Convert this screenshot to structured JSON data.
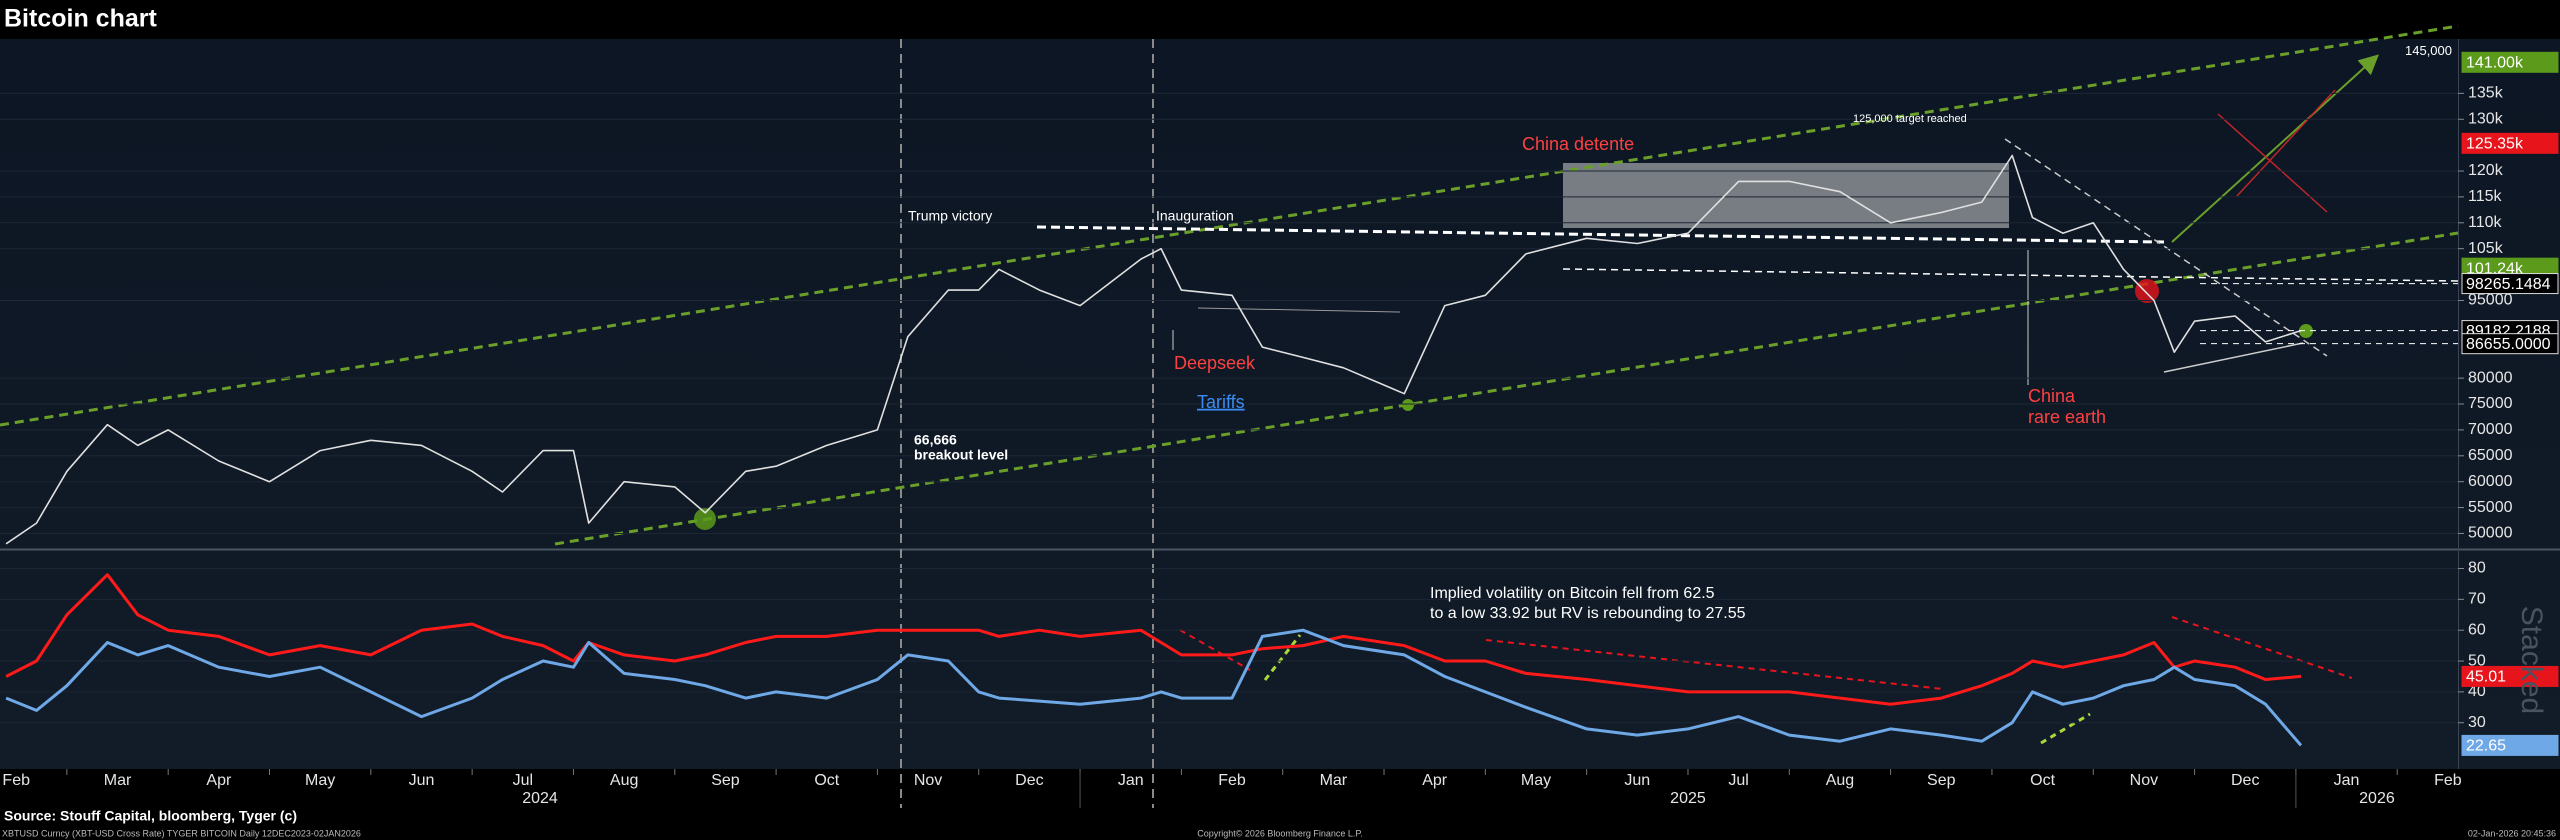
{
  "title": "Bitcoin chart",
  "source": "Source: Stouff Capital, bloomberg, Tyger (c)",
  "footer": {
    "left": "XBTUSD Curncy (XBT-USD Cross Rate) TYGER BITCOIN Daily 12DEC2023-02JAN2026",
    "center": "Copyright© 2026 Bloomberg Finance L.P.",
    "right": "02-Jan-2026 20:45:36"
  },
  "chart_data": [
    {
      "type": "line",
      "color": "#e0e0e0",
      "x": [
        1.4,
        1.7,
        2.0,
        2.4,
        2.7,
        3.0,
        3.5,
        4.0,
        4.5,
        5.0,
        5.5,
        6.0,
        6.3,
        6.7,
        7.0,
        7.15,
        7.5,
        8.0,
        8.3,
        8.7,
        9.0,
        9.5,
        10.0,
        10.3,
        10.7,
        11.0,
        11.2,
        11.6,
        12.0,
        12.6,
        12.8,
        13.0,
        13.5,
        13.8,
        14.2,
        14.6,
        15.2,
        15.6,
        16.0,
        16.4,
        17.0,
        17.5,
        18.0,
        18.5,
        19.0,
        19.5,
        20.0,
        20.5,
        20.9,
        21.2,
        21.4,
        21.7,
        22.0,
        22.3,
        22.6,
        22.8,
        23.0,
        23.4,
        23.7,
        24.05
      ],
      "values": [
        48000,
        52000,
        62000,
        71000,
        67000,
        70000,
        64000,
        60000,
        66000,
        68000,
        67000,
        62000,
        58000,
        66000,
        66000,
        52000,
        60000,
        59000,
        54000,
        62000,
        63000,
        67000,
        70000,
        88000,
        97000,
        97000,
        101000,
        97000,
        94000,
        103000,
        105000,
        97000,
        96000,
        86000,
        84000,
        82000,
        77000,
        94000,
        96000,
        104000,
        107000,
        106000,
        108000,
        118000,
        118000,
        116000,
        110000,
        112000,
        114000,
        123000,
        111000,
        108000,
        110000,
        101000,
        95000,
        85000,
        91000,
        92000,
        87000,
        89182.2188
      ],
      "xlim": [
        1.34,
        25.6
      ],
      "ylim": [
        47000,
        145500
      ],
      "yticks": [
        50000,
        55000,
        60000,
        65000,
        70000,
        75000,
        80000,
        95000,
        {
          "value": 105000,
          "label": "105k"
        },
        {
          "value": 110000,
          "label": "110k"
        },
        {
          "value": 115000,
          "label": "115k"
        },
        {
          "value": 120000,
          "label": "120k"
        },
        {
          "value": 130000,
          "label": "130k"
        },
        {
          "value": 135000,
          "label": "135k"
        }
      ],
      "ylim_label": {
        "value": 145000,
        "label": "145,000"
      },
      "level_labels": [
        {
          "value": 141000,
          "label": "141.00k",
          "color": "#5b9a1a"
        },
        {
          "value": 125350,
          "label": "125.35k",
          "color": "#e8141c"
        },
        {
          "value": 101240,
          "label": "101.24k",
          "color": "#5b9a1a"
        },
        {
          "value": 98265.1484,
          "label": "98265.1484",
          "color": "#000000"
        },
        {
          "value": 89182.2188,
          "label": "89182.2188",
          "color": "#000000"
        },
        {
          "value": 86655,
          "label": "86655.0000",
          "color": "#000000"
        }
      ],
      "annotations": [
        "Trump victory",
        "Inauguration",
        "China detente",
        "125,000 target reached",
        "Deepseek",
        "Tariffs",
        "66,666",
        "breakout level",
        "China",
        "rare earth"
      ]
    },
    {
      "type": "line",
      "x": [
        1.4,
        1.7,
        2.0,
        2.4,
        2.7,
        3.0,
        3.5,
        4.0,
        4.5,
        5.0,
        5.5,
        6.0,
        6.3,
        6.7,
        7.0,
        7.15,
        7.5,
        8.0,
        8.3,
        8.7,
        9.0,
        9.5,
        10.0,
        10.3,
        10.7,
        11.0,
        11.2,
        11.6,
        12.0,
        12.6,
        12.8,
        13.0,
        13.5,
        13.8,
        14.2,
        14.6,
        15.2,
        15.6,
        16.0,
        16.4,
        17.0,
        17.5,
        18.0,
        18.5,
        19.0,
        19.5,
        20.0,
        20.5,
        20.9,
        21.2,
        21.4,
        21.7,
        22.0,
        22.3,
        22.6,
        22.8,
        23.0,
        23.4,
        23.7,
        24.05
      ],
      "series": [
        {
          "color": "#ff1a1a",
          "values": [
            45,
            50,
            65,
            78,
            65,
            60,
            58,
            52,
            55,
            52,
            60,
            62,
            58,
            55,
            50,
            56,
            52,
            50,
            52,
            56,
            58,
            58,
            60,
            60,
            60,
            60,
            58,
            60,
            58,
            60,
            56,
            52,
            52,
            54,
            55,
            58,
            55,
            50,
            50,
            46,
            44,
            42,
            40,
            40,
            40,
            38,
            36,
            38,
            42,
            46,
            50,
            48,
            50,
            52,
            56,
            48,
            50,
            48,
            44,
            45.01
          ]
        },
        {
          "color": "#6fa8e6",
          "values": [
            38,
            34,
            42,
            56,
            52,
            55,
            48,
            45,
            48,
            40,
            32,
            38,
            44,
            50,
            48,
            56,
            46,
            44,
            42,
            38,
            40,
            38,
            44,
            52,
            50,
            40,
            38,
            37,
            36,
            38,
            40,
            38,
            38,
            58,
            60,
            55,
            52,
            45,
            40,
            35,
            28,
            26,
            28,
            32,
            26,
            24,
            28,
            26,
            24,
            30,
            40,
            36,
            38,
            42,
            44,
            48,
            44,
            42,
            36,
            22.65
          ]
        }
      ],
      "xlim": [
        1.34,
        25.6
      ],
      "ylim": [
        15,
        86
      ],
      "yticks": [
        30,
        40,
        50,
        60,
        70,
        80
      ],
      "level_labels": [
        {
          "value": 45.01,
          "label": "45.01",
          "color": "#e8141c"
        },
        {
          "value": 22.65,
          "label": "22.65",
          "color": "#6fa8e6"
        }
      ],
      "xticks": [
        {
          "value": 1,
          "label": "Feb"
        },
        {
          "value": 2,
          "label": "Mar"
        },
        {
          "value": 3,
          "label": "Apr"
        },
        {
          "value": 4,
          "label": "May"
        },
        {
          "value": 5,
          "label": "Jun"
        },
        {
          "value": 6,
          "label": "Jul"
        },
        {
          "value": 7,
          "label": "Aug"
        },
        {
          "value": 8,
          "label": "Sep"
        },
        {
          "value": 9,
          "label": "Oct"
        },
        {
          "value": 10,
          "label": "Nov"
        },
        {
          "value": 11,
          "label": "Dec"
        },
        {
          "value": 12,
          "label": "Jan"
        },
        {
          "value": 13,
          "label": "Feb"
        },
        {
          "value": 14,
          "label": "Mar"
        },
        {
          "value": 15,
          "label": "Apr"
        },
        {
          "value": 16,
          "label": "May"
        },
        {
          "value": 17,
          "label": "Jun"
        },
        {
          "value": 18,
          "label": "Jul"
        },
        {
          "value": 19,
          "label": "Aug"
        },
        {
          "value": 20,
          "label": "Sep"
        },
        {
          "value": 21,
          "label": "Oct"
        },
        {
          "value": 22,
          "label": "Nov"
        },
        {
          "value": 23,
          "label": "Dec"
        },
        {
          "value": 24,
          "label": "Jan"
        },
        {
          "value": 25,
          "label": "Feb"
        }
      ],
      "xticks_major": [
        {
          "value": 0,
          "label": "2024"
        },
        {
          "value": 12,
          "label": "2025"
        },
        {
          "value": 24,
          "label": "2026"
        }
      ],
      "annotations": [
        "Implied volatility on Bitcoin fell from 62.5",
        "to a low 33.92 but RV is rebounding to 27.55"
      ],
      "watermark": "Stacked"
    }
  ]
}
